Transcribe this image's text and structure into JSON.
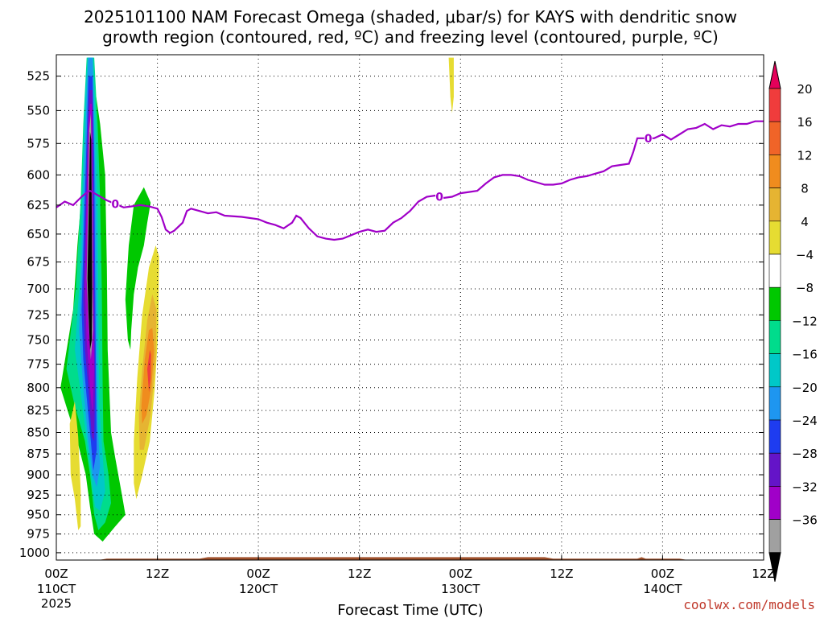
{
  "chart_data": {
    "type": "heatmap",
    "title_line1": "2025101100 NAM Forecast Omega (shaded, μbar/s) for KAYS with dendritic snow",
    "title_line2": "growth region (contoured, red, ºC) and freezing level (contoured, purple, ºC)",
    "xlabel": "Forecast Time (UTC)",
    "credit": "coolwx.com/models",
    "x_ticks": [
      {
        "hour": 0,
        "top": "00Z",
        "bottom": "110CT",
        "extra": "2025"
      },
      {
        "hour": 12,
        "top": "12Z",
        "bottom": ""
      },
      {
        "hour": 24,
        "top": "00Z",
        "bottom": "120CT"
      },
      {
        "hour": 36,
        "top": "12Z",
        "bottom": ""
      },
      {
        "hour": 48,
        "top": "00Z",
        "bottom": "130CT"
      },
      {
        "hour": 60,
        "top": "12Z",
        "bottom": ""
      },
      {
        "hour": 72,
        "top": "00Z",
        "bottom": "140CT"
      },
      {
        "hour": 84,
        "top": "12Z",
        "bottom": ""
      }
    ],
    "xlim": [
      0,
      84
    ],
    "y_ticks": [
      525,
      550,
      575,
      600,
      625,
      650,
      675,
      700,
      725,
      750,
      775,
      800,
      825,
      850,
      875,
      900,
      925,
      950,
      975,
      1000
    ],
    "ylim_hpa": [
      1010,
      510
    ],
    "y_scale": "log",
    "grid": true,
    "colorbar": {
      "ticks": [
        20,
        16,
        12,
        8,
        4,
        -4,
        -8,
        -12,
        -16,
        -20,
        -24,
        -28,
        -32,
        -36
      ],
      "colors": [
        "#e4005a",
        "#f03c3c",
        "#f06428",
        "#f08c1e",
        "#e6b432",
        "#e6dc32",
        "#ffffff",
        "#00c800",
        "#00dc8c",
        "#00c8c8",
        "#1e96f0",
        "#1e3cf0",
        "#6414c8",
        "#a000c8",
        "#a0a0a0",
        "#000000"
      ]
    },
    "freezing_level": {
      "label": "0",
      "color": "#a000c8",
      "points": [
        [
          0,
          627
        ],
        [
          1,
          622
        ],
        [
          2,
          625
        ],
        [
          3,
          618
        ],
        [
          3.5,
          615
        ],
        [
          4,
          613
        ],
        [
          5,
          617
        ],
        [
          6,
          621
        ],
        [
          7,
          624
        ],
        [
          8,
          627
        ],
        [
          9,
          626
        ],
        [
          10,
          625
        ],
        [
          11,
          626
        ],
        [
          12,
          628
        ],
        [
          12.5,
          635
        ],
        [
          13,
          646
        ],
        [
          13.5,
          649
        ],
        [
          14,
          647
        ],
        [
          15,
          640
        ],
        [
          15.5,
          630
        ],
        [
          16,
          628
        ],
        [
          17,
          630
        ],
        [
          18,
          632
        ],
        [
          19,
          631
        ],
        [
          20,
          634
        ],
        [
          22,
          635
        ],
        [
          24,
          637
        ],
        [
          25,
          640
        ],
        [
          26,
          642
        ],
        [
          27,
          645
        ],
        [
          28,
          640
        ],
        [
          28.5,
          634
        ],
        [
          29,
          636
        ],
        [
          30,
          645
        ],
        [
          31,
          652
        ],
        [
          32,
          654
        ],
        [
          33,
          655
        ],
        [
          34,
          654
        ],
        [
          35,
          651
        ],
        [
          36,
          648
        ],
        [
          37,
          646
        ],
        [
          38,
          648
        ],
        [
          39,
          647
        ],
        [
          40,
          640
        ],
        [
          41,
          636
        ],
        [
          42,
          630
        ],
        [
          43,
          622
        ],
        [
          44,
          618
        ],
        [
          45,
          617
        ],
        [
          46,
          619
        ],
        [
          47,
          618
        ],
        [
          48,
          615
        ],
        [
          49,
          614
        ],
        [
          50,
          613
        ],
        [
          51,
          607
        ],
        [
          52,
          602
        ],
        [
          53,
          600
        ],
        [
          54,
          600
        ],
        [
          55,
          601
        ],
        [
          56,
          604
        ],
        [
          57,
          606
        ],
        [
          58,
          608
        ],
        [
          59,
          608
        ],
        [
          60,
          607
        ],
        [
          61,
          604
        ],
        [
          62,
          602
        ],
        [
          63,
          601
        ],
        [
          64,
          599
        ],
        [
          65,
          597
        ],
        [
          66,
          593
        ],
        [
          67,
          592
        ],
        [
          68,
          591
        ],
        [
          68.5,
          582
        ],
        [
          69,
          571
        ],
        [
          70,
          571
        ],
        [
          71,
          571
        ],
        [
          72,
          568
        ],
        [
          73,
          572
        ],
        [
          74,
          568
        ],
        [
          75,
          564
        ],
        [
          76,
          563
        ],
        [
          77,
          560
        ],
        [
          78,
          564
        ],
        [
          79,
          561
        ],
        [
          80,
          562
        ],
        [
          81,
          560
        ],
        [
          82,
          560
        ],
        [
          83,
          558
        ],
        [
          84,
          558
        ]
      ]
    },
    "terrain": {
      "color": "#a0522d",
      "surface": [
        [
          0,
          1010
        ],
        [
          5,
          1010
        ],
        [
          6,
          1008
        ],
        [
          17,
          1008
        ],
        [
          18,
          1006
        ],
        [
          58,
          1006
        ],
        [
          59,
          1008
        ],
        [
          69,
          1008
        ],
        [
          69.5,
          1006
        ],
        [
          70,
          1008
        ],
        [
          74,
          1008
        ],
        [
          75,
          1010
        ],
        [
          84,
          1010
        ]
      ]
    },
    "shaded_regions": [
      {
        "name": "green-band-west",
        "color": "#00c800",
        "points": [
          [
            0.5,
            800
          ],
          [
            2,
            720
          ],
          [
            2.5,
            660
          ],
          [
            3.2,
            600
          ],
          [
            3.5,
            540
          ],
          [
            4.5,
            530
          ],
          [
            5.2,
            560
          ],
          [
            5.8,
            600
          ],
          [
            6,
            680
          ],
          [
            6.1,
            760
          ],
          [
            6.5,
            850
          ],
          [
            7,
            880
          ],
          [
            7.8,
            925
          ],
          [
            8.2,
            950
          ],
          [
            7,
            965
          ],
          [
            5.5,
            985
          ],
          [
            4.5,
            975
          ],
          [
            4,
            940
          ],
          [
            3.5,
            900
          ],
          [
            2.5,
            860
          ],
          [
            1.5,
            830
          ]
        ]
      },
      {
        "name": "teal-band",
        "color": "#00dc8c",
        "points": [
          [
            1.2,
            780
          ],
          [
            2.3,
            700
          ],
          [
            2.9,
            620
          ],
          [
            3.2,
            560
          ],
          [
            3.6,
            512
          ],
          [
            4.5,
            512
          ],
          [
            4.9,
            560
          ],
          [
            5.2,
            620
          ],
          [
            5.4,
            700
          ],
          [
            5.5,
            800
          ],
          [
            5.6,
            860
          ],
          [
            6.2,
            900
          ],
          [
            6.5,
            935
          ],
          [
            5.8,
            960
          ],
          [
            5,
            970
          ],
          [
            4.5,
            950
          ],
          [
            4,
            900
          ],
          [
            3.4,
            860
          ],
          [
            2.2,
            820
          ]
        ]
      },
      {
        "name": "cyan-band",
        "color": "#00c8c8",
        "points": [
          [
            2.2,
            760
          ],
          [
            2.8,
            690
          ],
          [
            3.1,
            610
          ],
          [
            3.4,
            540
          ],
          [
            3.7,
            512
          ],
          [
            4.4,
            512
          ],
          [
            4.7,
            560
          ],
          [
            4.9,
            620
          ],
          [
            5,
            720
          ],
          [
            5.1,
            820
          ],
          [
            5.6,
            890
          ],
          [
            5.8,
            920
          ],
          [
            5.2,
            945
          ],
          [
            4.6,
            940
          ],
          [
            4,
            890
          ],
          [
            3.5,
            850
          ],
          [
            2.8,
            800
          ]
        ]
      },
      {
        "name": "blue-band",
        "color": "#1e96f0",
        "points": [
          [
            2.7,
            740
          ],
          [
            3.1,
            660
          ],
          [
            3.3,
            600
          ],
          [
            3.6,
            540
          ],
          [
            3.8,
            512
          ],
          [
            4.3,
            512
          ],
          [
            4.5,
            560
          ],
          [
            4.7,
            630
          ],
          [
            4.8,
            730
          ],
          [
            4.9,
            840
          ],
          [
            5.2,
            890
          ],
          [
            4.8,
            915
          ],
          [
            4.3,
            900
          ],
          [
            3.8,
            860
          ],
          [
            3.2,
            800
          ]
        ]
      },
      {
        "name": "darkblue-band",
        "color": "#1e3cf0",
        "points": [
          [
            3,
            720
          ],
          [
            3.3,
            640
          ],
          [
            3.6,
            570
          ],
          [
            3.8,
            525
          ],
          [
            4.3,
            525
          ],
          [
            4.5,
            590
          ],
          [
            4.6,
            680
          ],
          [
            4.7,
            790
          ],
          [
            4.8,
            870
          ],
          [
            4.4,
            895
          ],
          [
            4.1,
            860
          ],
          [
            3.6,
            810
          ],
          [
            3.2,
            770
          ]
        ]
      },
      {
        "name": "indigo-band",
        "color": "#6414c8",
        "points": [
          [
            3.2,
            710
          ],
          [
            3.5,
            630
          ],
          [
            3.7,
            570
          ],
          [
            3.9,
            535
          ],
          [
            4.3,
            535
          ],
          [
            4.4,
            600
          ],
          [
            4.5,
            700
          ],
          [
            4.6,
            800
          ],
          [
            4.5,
            860
          ],
          [
            4.2,
            855
          ],
          [
            3.8,
            800
          ],
          [
            3.4,
            760
          ]
        ]
      },
      {
        "name": "purple-band",
        "color": "#a000c8",
        "points": [
          [
            3.4,
            700
          ],
          [
            3.6,
            620
          ],
          [
            3.8,
            560
          ],
          [
            4,
            545
          ],
          [
            4.2,
            545
          ],
          [
            4.3,
            610
          ],
          [
            4.4,
            700
          ],
          [
            4.5,
            780
          ],
          [
            4.3,
            830
          ],
          [
            4,
            800
          ],
          [
            3.6,
            750
          ]
        ]
      },
      {
        "name": "gray-band",
        "color": "#a0a0a0",
        "points": [
          [
            3.6,
            690
          ],
          [
            3.8,
            610
          ],
          [
            3.9,
            565
          ],
          [
            4.1,
            552
          ],
          [
            4.2,
            600
          ],
          [
            4.3,
            680
          ],
          [
            4.35,
            740
          ],
          [
            4.1,
            770
          ],
          [
            3.8,
            730
          ]
        ]
      },
      {
        "name": "black-core",
        "color": "#000000",
        "points": [
          [
            3.7,
            690
          ],
          [
            3.9,
            610
          ],
          [
            4,
            566
          ],
          [
            4.15,
            572
          ],
          [
            4.2,
            630
          ],
          [
            4.25,
            700
          ],
          [
            4.2,
            750
          ],
          [
            4,
            760
          ],
          [
            3.8,
            720
          ]
        ]
      },
      {
        "name": "yellow-band-west",
        "color": "#e6dc32",
        "points": [
          [
            1.6,
            840
          ],
          [
            2.2,
            815
          ],
          [
            2.6,
            855
          ],
          [
            2.9,
            920
          ],
          [
            2.9,
            965
          ],
          [
            2.6,
            970
          ],
          [
            2.2,
            930
          ],
          [
            1.7,
            900
          ]
        ]
      },
      {
        "name": "green-band-east",
        "color": "#00c800",
        "points": [
          [
            8.2,
            710
          ],
          [
            8.6,
            660
          ],
          [
            9.2,
            625
          ],
          [
            10.4,
            610
          ],
          [
            11.2,
            623
          ],
          [
            10.8,
            640
          ],
          [
            10.4,
            660
          ],
          [
            9.7,
            680
          ],
          [
            9.2,
            705
          ],
          [
            8.9,
            740
          ],
          [
            8.8,
            760
          ],
          [
            8.5,
            750
          ]
        ]
      },
      {
        "name": "yellow-band-east",
        "color": "#e6dc32",
        "points": [
          [
            9.2,
            860
          ],
          [
            9.6,
            790
          ],
          [
            10.2,
            725
          ],
          [
            11,
            680
          ],
          [
            11.8,
            660
          ],
          [
            12.2,
            670
          ],
          [
            12.1,
            740
          ],
          [
            11.7,
            800
          ],
          [
            11.1,
            860
          ],
          [
            10.1,
            905
          ],
          [
            9.5,
            930
          ],
          [
            9.2,
            910
          ]
        ]
      },
      {
        "name": "gold-band-east",
        "color": "#e6b432",
        "points": [
          [
            9.8,
            830
          ],
          [
            10.2,
            780
          ],
          [
            10.8,
            730
          ],
          [
            11.4,
            705
          ],
          [
            11.9,
            720
          ],
          [
            11.8,
            770
          ],
          [
            11.2,
            830
          ],
          [
            10.4,
            870
          ],
          [
            9.9,
            870
          ]
        ]
      },
      {
        "name": "orange-band-east",
        "color": "#f08c1e",
        "points": [
          [
            10.1,
            820
          ],
          [
            10.5,
            770
          ],
          [
            11,
            740
          ],
          [
            11.4,
            738
          ],
          [
            11.6,
            760
          ],
          [
            11.3,
            800
          ],
          [
            10.7,
            830
          ],
          [
            10.2,
            840
          ]
        ]
      },
      {
        "name": "red-band-east",
        "color": "#f03c3c",
        "points": [
          [
            10.8,
            780
          ],
          [
            11.1,
            760
          ],
          [
            11.25,
            765
          ],
          [
            11.2,
            790
          ],
          [
            11,
            805
          ]
        ]
      },
      {
        "name": "yellow-sliver-top",
        "color": "#e6dc32",
        "points": [
          [
            46.6,
            512
          ],
          [
            47.2,
            512
          ],
          [
            47.2,
            540
          ],
          [
            47,
            552
          ],
          [
            46.8,
            540
          ]
        ]
      }
    ]
  }
}
